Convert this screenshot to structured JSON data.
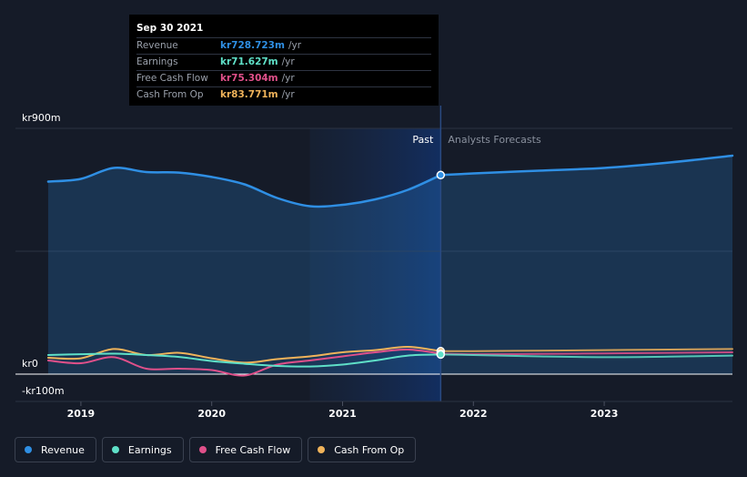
{
  "tooltip": {
    "date": "Sep 30 2021",
    "rows": [
      {
        "label": "Revenue",
        "value": "kr728.723m",
        "unit": "/yr",
        "color": "#2f8fe4"
      },
      {
        "label": "Earnings",
        "value": "kr71.627m",
        "unit": "/yr",
        "color": "#5fe0c8"
      },
      {
        "label": "Free Cash Flow",
        "value": "kr75.304m",
        "unit": "/yr",
        "color": "#e0508a"
      },
      {
        "label": "Cash From Op",
        "value": "kr83.771m",
        "unit": "/yr",
        "color": "#f0b35a"
      }
    ]
  },
  "legend": [
    {
      "label": "Revenue",
      "color": "#2f8fe4"
    },
    {
      "label": "Earnings",
      "color": "#5fe0c8"
    },
    {
      "label": "Free Cash Flow",
      "color": "#e0508a"
    },
    {
      "label": "Cash From Op",
      "color": "#f0b35a"
    }
  ],
  "chart_data": {
    "type": "line",
    "title": "",
    "xlabel": "",
    "ylabel": "",
    "ylim": [
      -100,
      900
    ],
    "xlim": [
      2018.5,
      2023.98
    ],
    "y_tick_labels": [
      {
        "value": 900,
        "label": "kr900m"
      },
      {
        "value": 0,
        "label": "kr0"
      },
      {
        "value": -100,
        "label": "-kr100m"
      }
    ],
    "x_tick_labels": [
      {
        "value": 2019,
        "label": "2019"
      },
      {
        "value": 2020,
        "label": "2020"
      },
      {
        "value": 2021,
        "label": "2021"
      },
      {
        "value": 2022,
        "label": "2022"
      },
      {
        "value": 2023,
        "label": "2023"
      }
    ],
    "divider_x": 2021.75,
    "highlight_from": 2020.75,
    "past_label": "Past",
    "forecast_label": "Analysts Forecasts",
    "series": [
      {
        "name": "Revenue",
        "color": "#2f8fe4",
        "fill": true,
        "x": [
          2018.75,
          2019.0,
          2019.25,
          2019.5,
          2019.75,
          2020.0,
          2020.25,
          2020.5,
          2020.75,
          2021.0,
          2021.25,
          2021.5,
          2021.75
        ],
        "y": [
          705,
          715,
          755,
          740,
          738,
          722,
          695,
          645,
          615,
          620,
          640,
          675,
          729
        ],
        "forecast_x": [
          2021.75,
          2022.0,
          2022.5,
          2023.0,
          2023.5,
          2023.98
        ],
        "forecast_y": [
          729,
          735,
          745,
          755,
          775,
          800
        ]
      },
      {
        "name": "Earnings",
        "color": "#5fe0c8",
        "fill": false,
        "x": [
          2018.75,
          2019.0,
          2019.25,
          2019.5,
          2019.75,
          2020.0,
          2020.25,
          2020.5,
          2020.75,
          2021.0,
          2021.25,
          2021.5,
          2021.75
        ],
        "y": [
          70,
          73,
          75,
          70,
          63,
          48,
          38,
          30,
          28,
          35,
          50,
          68,
          72
        ],
        "forecast_x": [
          2021.75,
          2022.0,
          2022.5,
          2023.0,
          2023.5,
          2023.98
        ],
        "forecast_y": [
          72,
          70,
          65,
          62,
          64,
          68
        ]
      },
      {
        "name": "Free Cash Flow",
        "color": "#e0508a",
        "fill": false,
        "x": [
          2018.75,
          2019.0,
          2019.25,
          2019.5,
          2019.75,
          2020.0,
          2020.25,
          2020.5,
          2020.75,
          2021.0,
          2021.25,
          2021.5,
          2021.75
        ],
        "y": [
          50,
          40,
          62,
          20,
          20,
          15,
          -5,
          35,
          50,
          65,
          80,
          90,
          75
        ],
        "forecast_x": [
          2021.75,
          2022.0,
          2022.5,
          2023.0,
          2023.5,
          2023.98
        ],
        "forecast_y": [
          75,
          73,
          74,
          76,
          78,
          80
        ]
      },
      {
        "name": "Cash From Op",
        "color": "#f0b35a",
        "fill": false,
        "x": [
          2018.75,
          2019.0,
          2019.25,
          2019.5,
          2019.75,
          2020.0,
          2020.25,
          2020.5,
          2020.75,
          2021.0,
          2021.25,
          2021.5,
          2021.75
        ],
        "y": [
          60,
          58,
          92,
          70,
          78,
          58,
          42,
          55,
          65,
          80,
          88,
          100,
          84
        ],
        "forecast_x": [
          2021.75,
          2022.0,
          2022.5,
          2023.0,
          2023.5,
          2023.98
        ],
        "forecast_y": [
          84,
          84,
          86,
          88,
          90,
          92
        ]
      }
    ]
  }
}
